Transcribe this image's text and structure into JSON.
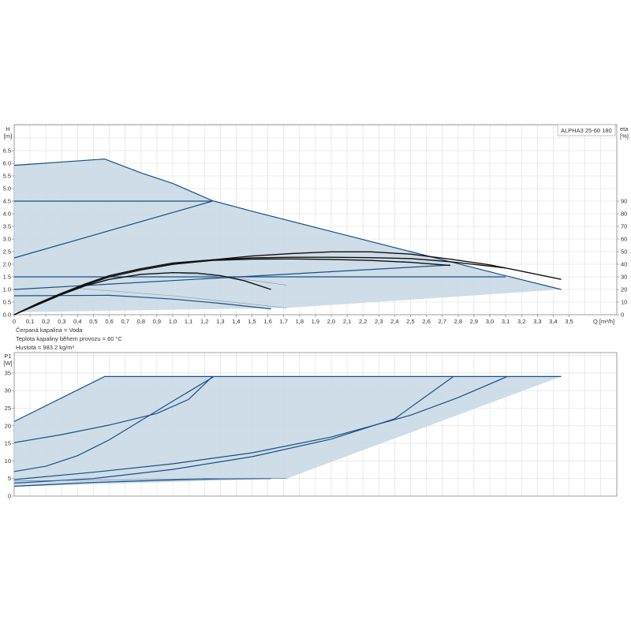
{
  "colors": {
    "curve": "#1a4f86",
    "eta": "#111111",
    "fill": "#c9d9e6",
    "grid": "#dddddd",
    "axis": "#888888"
  },
  "chart_data": [
    {
      "type": "line",
      "legend": "ALPHA3 25-60 180",
      "xlabel": "Q [m³/h]",
      "ylabel": "H",
      "ylabel_unit": "[m]",
      "y2label": "eta",
      "y2label_unit": "[%]",
      "xlim": [
        0,
        3.8
      ],
      "ylim": [
        0,
        7.5
      ],
      "y2lim": [
        0,
        150
      ],
      "grid": true,
      "x_ticks": [
        "0",
        "0,1",
        "0,2",
        "0,3",
        "0,4",
        "0,5",
        "0,6",
        "0,7",
        "0,8",
        "0,9",
        "1,0",
        "1,1",
        "1,2",
        "1,3",
        "1,4",
        "1,5",
        "1,6",
        "1,7",
        "1,8",
        "1,9",
        "2,0",
        "2,1",
        "2,2",
        "2,3",
        "2,4",
        "2,5",
        "2,6",
        "2,7",
        "2,8",
        "2,9",
        "3,0",
        "3,1",
        "3,2",
        "3,3",
        "3,4",
        "3,5"
      ],
      "y_ticks": [
        "0.0",
        "0.5",
        "1.0",
        "1.5",
        "2.0",
        "2.5",
        "3.0",
        "3.5",
        "4.0",
        "4.5",
        "5.0",
        "5.5",
        "6.0",
        "6.5"
      ],
      "y2_ticks": [
        "0",
        "10",
        "20",
        "30",
        "40",
        "50",
        "60",
        "70",
        "80",
        "90"
      ],
      "operating_range": [
        [
          0,
          5.92
        ],
        [
          0.57,
          6.17
        ],
        [
          0.8,
          5.62
        ],
        [
          1.0,
          5.2
        ],
        [
          1.25,
          4.52
        ],
        [
          1.5,
          4.1
        ],
        [
          2.0,
          3.3
        ],
        [
          2.5,
          2.5
        ],
        [
          3.0,
          1.7
        ],
        [
          3.45,
          1.0
        ],
        [
          1.72,
          0.27
        ],
        [
          0,
          0.1
        ]
      ],
      "head_series": [
        {
          "points": [
            [
              0,
              5.92
            ],
            [
              0.57,
              6.17
            ],
            [
              0.8,
              5.62
            ],
            [
              1.0,
              5.2
            ],
            [
              1.25,
              4.52
            ],
            [
              1.5,
              4.1
            ],
            [
              2.0,
              3.3
            ],
            [
              2.5,
              2.5
            ],
            [
              3.0,
              1.7
            ],
            [
              3.45,
              1.0
            ]
          ]
        },
        {
          "points": [
            [
              0,
              4.5
            ],
            [
              1.25,
              4.5
            ]
          ]
        },
        {
          "points": [
            [
              0,
              2.25
            ],
            [
              1.25,
              4.5
            ]
          ]
        },
        {
          "points": [
            [
              0,
              1.5
            ],
            [
              3.1,
              1.5
            ]
          ]
        },
        {
          "points": [
            [
              0,
              1.0
            ],
            [
              2.75,
              1.97
            ]
          ]
        },
        {
          "points": [
            [
              0,
              0.75
            ],
            [
              0.6,
              0.77
            ],
            [
              1.0,
              0.62
            ],
            [
              1.3,
              0.45
            ],
            [
              1.62,
              0.23
            ]
          ]
        },
        {
          "points": [
            [
              0.4,
              1.05
            ],
            [
              1.0,
              0.75
            ],
            [
              1.72,
              0.27
            ]
          ],
          "thin": true
        },
        {
          "points": [
            [
              1.0,
              1.67
            ],
            [
              1.4,
              1.45
            ],
            [
              1.72,
              1.17
            ]
          ],
          "thin": true
        }
      ],
      "eta_series": [
        {
          "points": [
            [
              0,
              0
            ],
            [
              0.15,
              9
            ],
            [
              0.3,
              17
            ],
            [
              0.45,
              24
            ],
            [
              0.6,
              30
            ],
            [
              0.8,
              35.5
            ],
            [
              1.0,
              40
            ],
            [
              1.25,
              43.5
            ],
            [
              1.5,
              46.5
            ],
            [
              1.75,
              48.5
            ],
            [
              2.0,
              49.8
            ],
            [
              2.25,
              49.8
            ],
            [
              2.5,
              48
            ],
            [
              2.75,
              44
            ],
            [
              3.0,
              39.5
            ],
            [
              3.2,
              34.5
            ],
            [
              3.45,
              28
            ]
          ]
        },
        {
          "points": [
            [
              0,
              0
            ],
            [
              0.15,
              9
            ],
            [
              0.3,
              17
            ],
            [
              0.45,
              24.5
            ],
            [
              0.6,
              31
            ],
            [
              0.8,
              36.5
            ],
            [
              1.0,
              41
            ],
            [
              1.25,
              43.5
            ],
            [
              1.5,
              45
            ],
            [
              1.75,
              45.5
            ],
            [
              2.0,
              45.5
            ],
            [
              2.25,
              45.2
            ],
            [
              2.5,
              44.5
            ],
            [
              2.75,
              42
            ],
            [
              3.0,
              38.5
            ],
            [
              3.1,
              37
            ]
          ]
        },
        {
          "points": [
            [
              0,
              0
            ],
            [
              0.15,
              8.5
            ],
            [
              0.3,
              16.5
            ],
            [
              0.45,
              23.5
            ],
            [
              0.6,
              30
            ],
            [
              0.8,
              35.5
            ],
            [
              1.0,
              40
            ],
            [
              1.25,
              43
            ],
            [
              1.5,
              44
            ],
            [
              1.75,
              44.2
            ],
            [
              2.0,
              43.8
            ],
            [
              2.25,
              43
            ],
            [
              2.5,
              41.5
            ],
            [
              2.75,
              39
            ]
          ]
        },
        {
          "points": [
            [
              0,
              0
            ],
            [
              0.15,
              8
            ],
            [
              0.3,
              16
            ],
            [
              0.45,
              23
            ],
            [
              0.6,
              28
            ],
            [
              0.8,
              32
            ],
            [
              1.0,
              33.3
            ],
            [
              1.15,
              33
            ],
            [
              1.3,
              31
            ],
            [
              1.45,
              27
            ],
            [
              1.62,
              20
            ]
          ]
        }
      ]
    },
    {
      "type": "line",
      "ylabel": "P1",
      "ylabel_unit": "[W]",
      "xlim": [
        0,
        3.8
      ],
      "ylim": [
        0,
        40
      ],
      "grid": true,
      "y_ticks": [
        "0",
        "5",
        "10",
        "15",
        "20",
        "25",
        "30",
        "35"
      ],
      "operating_range": [
        [
          0,
          21.2
        ],
        [
          0.57,
          34
        ],
        [
          3.45,
          34
        ],
        [
          1.72,
          5
        ],
        [
          0,
          2.7
        ]
      ],
      "series": [
        {
          "points": [
            [
              0,
              21.2
            ],
            [
              0.57,
              34
            ],
            [
              3.45,
              34
            ]
          ]
        },
        {
          "points": [
            [
              0,
              15.2
            ],
            [
              0.3,
              17.5
            ],
            [
              0.6,
              20.2
            ],
            [
              0.9,
              23.5
            ],
            [
              1.1,
              27.5
            ],
            [
              1.25,
              34
            ]
          ]
        },
        {
          "points": [
            [
              0,
              7
            ],
            [
              0.2,
              8.5
            ],
            [
              0.4,
              11.5
            ],
            [
              0.6,
              16
            ],
            [
              0.8,
              21.5
            ],
            [
              1.0,
              27
            ],
            [
              1.26,
              34
            ]
          ]
        },
        {
          "points": [
            [
              0,
              3.7
            ],
            [
              0.5,
              5
            ],
            [
              1.0,
              7.6
            ],
            [
              1.5,
              11.2
            ],
            [
              2.0,
              16.2
            ],
            [
              2.4,
              22
            ],
            [
              2.77,
              34
            ]
          ]
        },
        {
          "points": [
            [
              0,
              4.7
            ],
            [
              0.5,
              6.8
            ],
            [
              1.0,
              9.2
            ],
            [
              1.5,
              12.3
            ],
            [
              2.0,
              16.8
            ],
            [
              2.5,
              23
            ],
            [
              2.8,
              28
            ],
            [
              3.11,
              34
            ]
          ]
        },
        {
          "points": [
            [
              0,
              2.8
            ],
            [
              0.5,
              3.9
            ],
            [
              1.0,
              4.6
            ],
            [
              1.3,
              4.9
            ],
            [
              1.62,
              5
            ]
          ]
        },
        {
          "points": [
            [
              0,
              4.3
            ],
            [
              0.6,
              4.6
            ],
            [
              1.2,
              5
            ],
            [
              1.72,
              5
            ]
          ],
          "thin": true
        }
      ]
    }
  ],
  "notes": {
    "fluid": "Čerpaná kapalina = Voda",
    "temperature": "Teplota kapaliny během provozu = 60 °C",
    "density": "Hustota = 983.2 kg/m³"
  }
}
